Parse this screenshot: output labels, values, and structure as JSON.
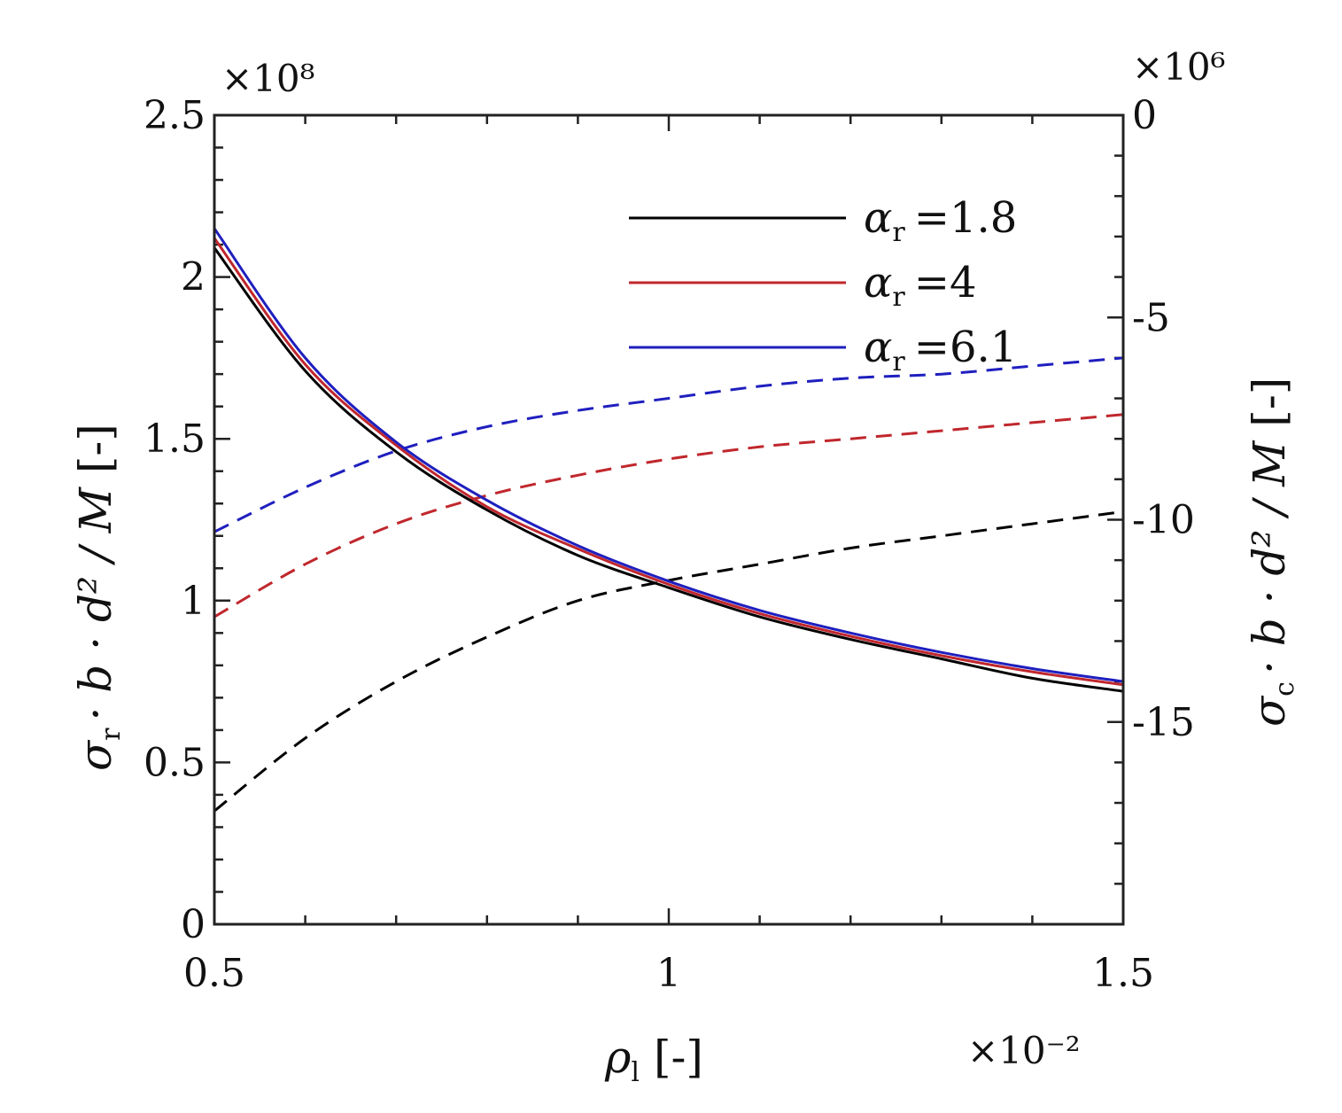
{
  "chart_data": {
    "type": "line",
    "title": "",
    "xlabel": {
      "main": "ρ",
      "sub": "l",
      "unit": "[-]"
    },
    "ylabel_left": {
      "sym": "σ",
      "sub": "r",
      "rest": "· b · d² / M",
      "unit": "[-]"
    },
    "ylabel_right": {
      "sym": "σ",
      "sub": "c",
      "rest": "· b · d² / M",
      "unit": "[-]"
    },
    "x_multiplier": "×10⁻²",
    "y_left_multiplier": "×10⁸",
    "y_right_multiplier": "×10⁶",
    "xlim": [
      0.5,
      1.5
    ],
    "ylim_left": [
      0,
      2.5
    ],
    "ylim_right": [
      -20,
      0
    ],
    "x_ticks": [
      0.5,
      1,
      1.5
    ],
    "x_tick_labels": [
      "0.5",
      "1",
      "1.5"
    ],
    "y_left_ticks": [
      0,
      0.5,
      1,
      1.5,
      2,
      2.5
    ],
    "y_left_tick_labels": [
      "0",
      "0.5",
      "1",
      "1.5",
      "2",
      "2.5"
    ],
    "y_right_ticks": [
      0,
      -5,
      -10,
      -15
    ],
    "y_right_tick_labels": [
      "0",
      "-5",
      "-10",
      "-15"
    ],
    "grid": false,
    "legend_position": "top-right",
    "x": [
      0.5,
      0.6,
      0.7,
      0.8,
      0.9,
      1.0,
      1.1,
      1.2,
      1.3,
      1.4,
      1.5
    ],
    "series": [
      {
        "name": "α_r =1.8",
        "legend_sym": "α",
        "legend_sub": "r",
        "legend_val": "=1.8",
        "color": "#000000",
        "axis": "left",
        "style": "solid",
        "values": [
          2.09,
          1.71,
          1.46,
          1.28,
          1.14,
          1.04,
          0.95,
          0.88,
          0.82,
          0.76,
          0.72
        ]
      },
      {
        "name": "α_r =4",
        "color": "#c0272d",
        "axis": "left",
        "style": "solid",
        "values": [
          2.12,
          1.73,
          1.48,
          1.29,
          1.16,
          1.05,
          0.96,
          0.89,
          0.83,
          0.78,
          0.74
        ]
      },
      {
        "name": "α_r =6.1",
        "color": "#1f1fbf",
        "axis": "left",
        "style": "solid",
        "values": [
          2.15,
          1.75,
          1.49,
          1.31,
          1.17,
          1.06,
          0.97,
          0.9,
          0.84,
          0.79,
          0.75
        ]
      },
      {
        "color": "#000000",
        "axis": "right",
        "style": "dashed",
        "values": [
          -17.2,
          -15.4,
          -14.0,
          -12.9,
          -12.0,
          -11.5,
          -11.1,
          -10.7,
          -10.4,
          -10.1,
          -9.8
        ]
      },
      {
        "color": "#c0272d",
        "axis": "right",
        "style": "dashed",
        "values": [
          -12.4,
          -11.1,
          -10.1,
          -9.4,
          -8.9,
          -8.5,
          -8.2,
          -8.0,
          -7.8,
          -7.6,
          -7.4
        ]
      },
      {
        "color": "#1f1fbf",
        "axis": "right",
        "style": "dashed",
        "values": [
          -10.3,
          -9.2,
          -8.3,
          -7.7,
          -7.3,
          -7.0,
          -6.7,
          -6.5,
          -6.4,
          -6.2,
          -6.0
        ]
      }
    ],
    "legend": [
      {
        "sym": "α",
        "sub": "r",
        "val": "=1.8",
        "color": "#000000"
      },
      {
        "sym": "α",
        "sub": "r",
        "val": "=4",
        "color": "#c0272d"
      },
      {
        "sym": "α",
        "sub": "r",
        "val": "=6.1",
        "color": "#1f1fbf"
      }
    ]
  }
}
